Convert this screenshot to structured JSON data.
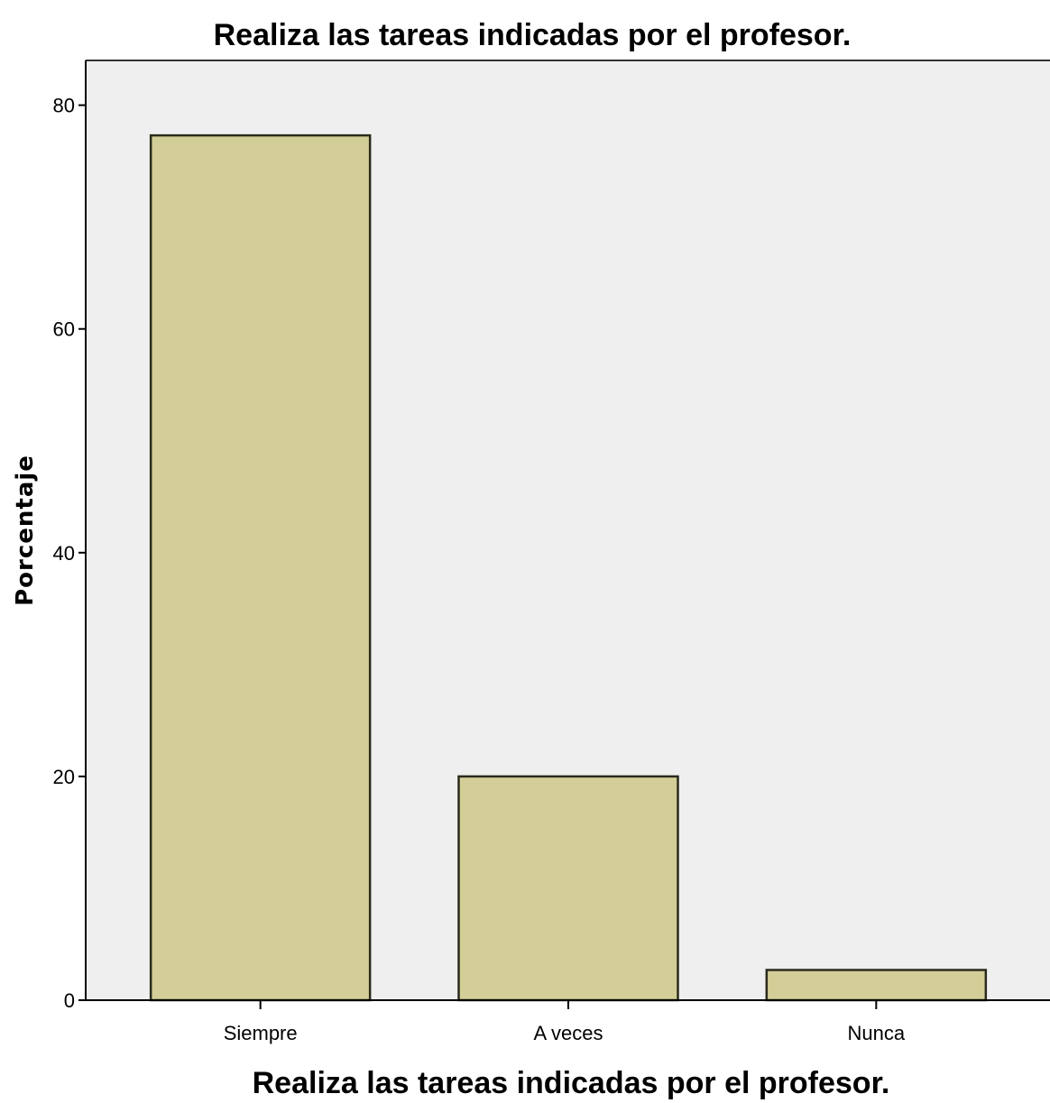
{
  "chart_data": {
    "type": "bar",
    "title": "Realiza las tareas indicadas por el profesor.",
    "xlabel": "Realiza las tareas indicadas por el profesor.",
    "ylabel": "Porcentaje",
    "categories": [
      "Siempre",
      "A veces",
      "Nunca"
    ],
    "values": [
      77.3,
      20.0,
      2.7
    ],
    "ylim": [
      0,
      84
    ],
    "yticks": [
      0,
      20,
      40,
      60,
      80
    ],
    "grid": false,
    "legend": "none",
    "colors": {
      "plot_background": "#efefef",
      "bar_fill": "#d3ce97",
      "bar_stroke": "#2a2a1c",
      "axis": "#000000"
    }
  }
}
